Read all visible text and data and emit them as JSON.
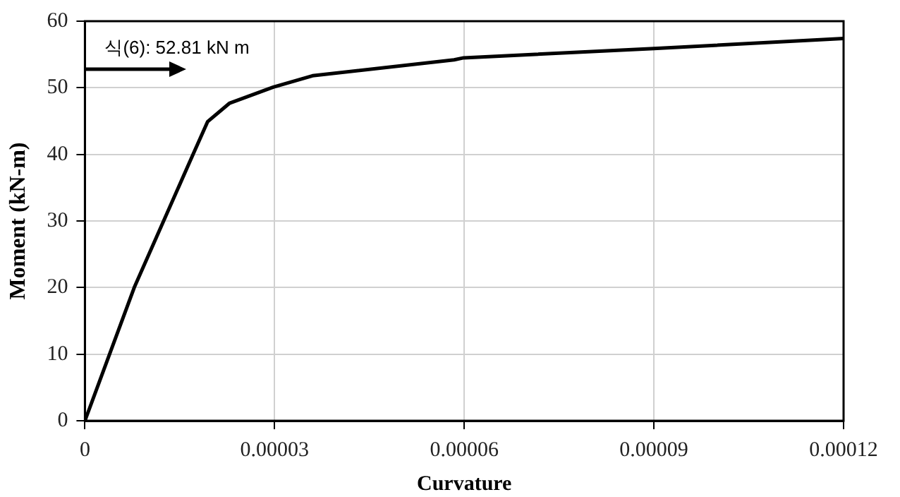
{
  "chart_data": {
    "type": "line",
    "xlabel": "Curvature",
    "ylabel": "Moment (kN-m)",
    "xlim": [
      0,
      0.00012
    ],
    "xticks": [
      0,
      {
        "value": 3e-05,
        "label": "0.00003"
      },
      {
        "value": 6e-05,
        "label": "0.00006"
      },
      {
        "value": 9e-05,
        "label": "0.00009"
      },
      0.00012
    ],
    "ylim": [
      0,
      60
    ],
    "yticks": [
      0,
      10,
      20,
      30,
      40,
      50,
      60
    ],
    "grid": true,
    "legend": false,
    "marker": "none",
    "line_style": "solid",
    "annotations": [
      "식(6): 52.81 kN m"
    ],
    "series": [
      {
        "color": "#000000",
        "x": [
          0,
          7.8e-06,
          1.71e-05,
          1.94e-05,
          2.29e-05,
          2.98e-05,
          3.6e-05,
          5.84e-05,
          5.99e-05,
          9e-05,
          0.00012
        ],
        "values": [
          0,
          20,
          40,
          44.9,
          47.7,
          50.1,
          51.8,
          54.2,
          54.5,
          55.9,
          57.4
        ]
      }
    ]
  }
}
